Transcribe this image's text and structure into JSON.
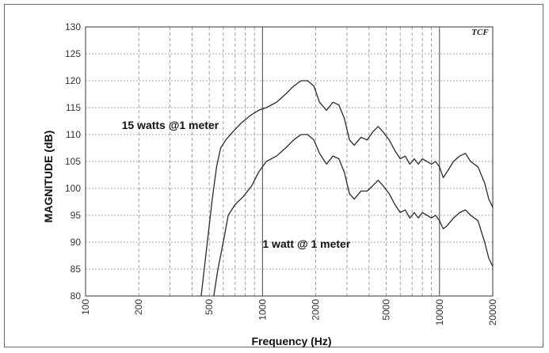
{
  "chart_data": {
    "type": "line",
    "title": "",
    "xlabel": "Frequency (Hz)",
    "ylabel": "MAGNITUDE (dB)",
    "xscale": "log",
    "xlim": [
      100,
      20000
    ],
    "ylim": [
      80,
      130
    ],
    "grid": true,
    "logo_text": "TCF",
    "y_ticks": [
      "80",
      "85",
      "90",
      "95",
      "100",
      "105",
      "110",
      "115",
      "120",
      "125",
      "130"
    ],
    "x_ticks": [
      "100",
      "200",
      "500",
      "1000",
      "2000",
      "5000",
      "10000",
      "20000"
    ],
    "annotations": [
      {
        "text": "15 watts @1 meter",
        "x": 160,
        "y": 111
      },
      {
        "text": "1 watt @ 1 meter",
        "x": 1000,
        "y": 89
      }
    ],
    "series": [
      {
        "values": [
          [
            450,
            80
          ],
          [
            480,
            88
          ],
          [
            520,
            98
          ],
          [
            550,
            104
          ],
          [
            580,
            107.5
          ],
          [
            620,
            109
          ],
          [
            680,
            110.5
          ],
          [
            750,
            112
          ],
          [
            850,
            113.5
          ],
          [
            950,
            114.5
          ],
          [
            1050,
            115
          ],
          [
            1200,
            116
          ],
          [
            1350,
            117.5
          ],
          [
            1500,
            119
          ],
          [
            1650,
            120
          ],
          [
            1800,
            120
          ],
          [
            1950,
            119
          ],
          [
            2100,
            116
          ],
          [
            2300,
            114.5
          ],
          [
            2500,
            116
          ],
          [
            2700,
            115.5
          ],
          [
            2900,
            113
          ],
          [
            3100,
            109
          ],
          [
            3300,
            108
          ],
          [
            3600,
            109.5
          ],
          [
            3900,
            109
          ],
          [
            4200,
            110.5
          ],
          [
            4500,
            111.5
          ],
          [
            4800,
            110.5
          ],
          [
            5200,
            109
          ],
          [
            5600,
            107
          ],
          [
            6000,
            105.5
          ],
          [
            6400,
            106
          ],
          [
            6800,
            104.5
          ],
          [
            7200,
            105.5
          ],
          [
            7600,
            104.5
          ],
          [
            8000,
            105.5
          ],
          [
            8500,
            105
          ],
          [
            9000,
            104.5
          ],
          [
            9500,
            105
          ],
          [
            10000,
            104
          ],
          [
            10500,
            102
          ],
          [
            11000,
            103
          ],
          [
            12000,
            105
          ],
          [
            13000,
            106
          ],
          [
            14000,
            106.5
          ],
          [
            15000,
            105
          ],
          [
            16500,
            104
          ],
          [
            18000,
            101
          ],
          [
            19000,
            98
          ],
          [
            20000,
            96.5
          ]
        ]
      },
      {
        "values": [
          [
            530,
            80
          ],
          [
            560,
            85
          ],
          [
            600,
            90
          ],
          [
            640,
            95
          ],
          [
            700,
            97
          ],
          [
            780,
            98.5
          ],
          [
            870,
            100.5
          ],
          [
            950,
            103
          ],
          [
            1050,
            105
          ],
          [
            1200,
            106
          ],
          [
            1350,
            107.5
          ],
          [
            1500,
            109
          ],
          [
            1650,
            110
          ],
          [
            1800,
            110
          ],
          [
            1950,
            109
          ],
          [
            2100,
            106.5
          ],
          [
            2300,
            104.5
          ],
          [
            2500,
            106
          ],
          [
            2700,
            105.5
          ],
          [
            2900,
            103
          ],
          [
            3100,
            99
          ],
          [
            3300,
            98
          ],
          [
            3600,
            99.5
          ],
          [
            3900,
            99.5
          ],
          [
            4200,
            100.5
          ],
          [
            4500,
            101.5
          ],
          [
            4800,
            100.5
          ],
          [
            5200,
            99
          ],
          [
            5600,
            97
          ],
          [
            6000,
            95.5
          ],
          [
            6400,
            96
          ],
          [
            6800,
            94.5
          ],
          [
            7200,
            95.5
          ],
          [
            7600,
            94.5
          ],
          [
            8000,
            95.5
          ],
          [
            8500,
            95
          ],
          [
            9000,
            94.5
          ],
          [
            9500,
            95
          ],
          [
            10000,
            94
          ],
          [
            10500,
            92.5
          ],
          [
            11000,
            93
          ],
          [
            12000,
            94.5
          ],
          [
            13000,
            95.5
          ],
          [
            14000,
            96
          ],
          [
            15000,
            95
          ],
          [
            16500,
            94
          ],
          [
            18000,
            90
          ],
          [
            19000,
            87
          ],
          [
            20000,
            85.5
          ]
        ]
      }
    ]
  }
}
